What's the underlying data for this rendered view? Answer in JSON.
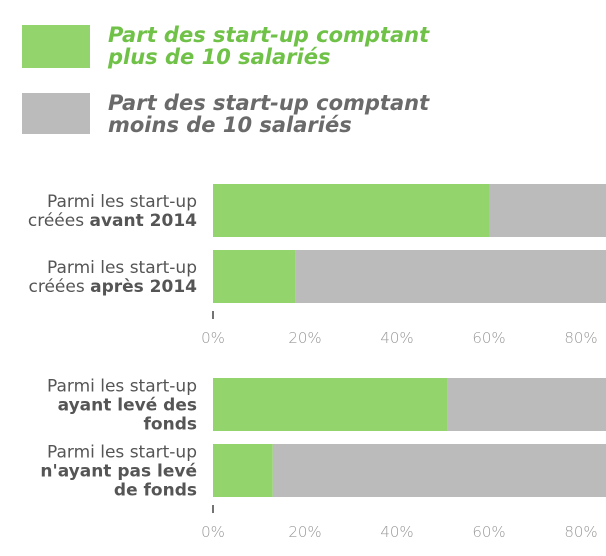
{
  "chart_data": {
    "type": "bar",
    "orientation": "horizontal",
    "stacked": true,
    "series": [
      {
        "name": "Part des start-up comptant plus de 10 salariés",
        "color": "#93d56c",
        "text_color": "#6fc247"
      },
      {
        "name": "Part des start-up comptant moins de 10 salariés",
        "color": "#bbbbbb",
        "text_color": "#6a6a6a"
      }
    ],
    "xlim": [
      0,
      100
    ],
    "panels": [
      {
        "categories": [
          [
            [
              {
                "t": "Parmi les start-up"
              }
            ],
            [
              {
                "t": "créées "
              },
              {
                "t": "avant 2014",
                "b": true
              }
            ]
          ],
          [
            [
              {
                "t": "Parmi les start-up"
              }
            ],
            [
              {
                "t": "créées "
              },
              {
                "t": "après 2014",
                "b": true
              }
            ]
          ]
        ],
        "series": [
          {
            "values": [
              60,
              18
            ]
          },
          {
            "values": [
              40,
              82
            ]
          }
        ],
        "xticks": [
          {
            "value": 0,
            "label": "0%"
          },
          {
            "value": 20,
            "label": "20%"
          },
          {
            "value": 40,
            "label": "40%"
          },
          {
            "value": 60,
            "label": "60%"
          },
          {
            "value": 80,
            "label": "80%"
          }
        ]
      },
      {
        "categories": [
          [
            [
              {
                "t": "Parmi les start-up"
              }
            ],
            [
              {
                "t": "ayant levé des",
                "b": true
              }
            ],
            [
              {
                "t": "fonds",
                "b": true
              }
            ]
          ],
          [
            [
              {
                "t": "Parmi les start-up"
              }
            ],
            [
              {
                "t": "n'ayant pas levé",
                "b": true
              }
            ],
            [
              {
                "t": "de fonds",
                "b": true
              }
            ]
          ]
        ],
        "series": [
          {
            "values": [
              51,
              13
            ]
          },
          {
            "values": [
              49,
              87
            ]
          }
        ],
        "xticks": [
          {
            "value": 0,
            "label": "0%"
          },
          {
            "value": 20,
            "label": "20%"
          },
          {
            "value": 40,
            "label": "40%"
          },
          {
            "value": 60,
            "label": "60%"
          },
          {
            "value": 80,
            "label": "80%"
          }
        ]
      }
    ]
  }
}
